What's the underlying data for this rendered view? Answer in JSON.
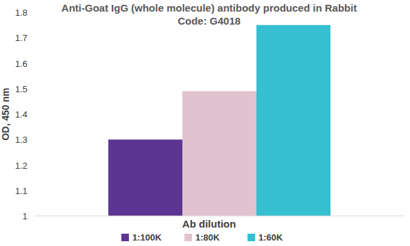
{
  "chart_data": {
    "type": "bar",
    "title": "Anti-Goat IgG (whole molecule) antibody produced in Rabbit",
    "subtitle": "Code: G4018",
    "x_label": "Ab dilution",
    "y_label": "OD, 450 nm",
    "categories": [
      null
    ],
    "series": [
      {
        "name": "1:100K",
        "color": "#5c3592",
        "values": [
          1.3
        ]
      },
      {
        "name": "1:80K",
        "color": "#e0c3cf",
        "values": [
          1.49
        ]
      },
      {
        "name": "1:60K",
        "color": "#35bfcf",
        "values": [
          1.75
        ]
      }
    ],
    "ylim": [
      1,
      1.8
    ],
    "yticks": [
      1,
      1.1,
      1.2,
      1.3,
      1.4,
      1.5,
      1.6,
      1.7,
      1.8
    ],
    "grid": false,
    "legend": "bottom"
  }
}
